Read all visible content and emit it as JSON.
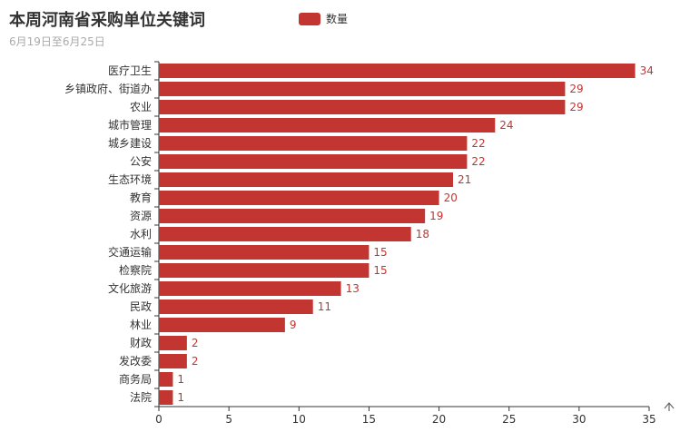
{
  "title": "本周河南省采购单位关键词",
  "subtitle": "6月19日至6月25日",
  "legend": {
    "label": "数量",
    "color": "#c23531"
  },
  "scroll_icon": "chevron-up-icon",
  "chart_data": {
    "type": "bar",
    "orientation": "horizontal",
    "categories": [
      "医疗卫生",
      "乡镇政府、街道办",
      "农业",
      "城市管理",
      "城乡建设",
      "公安",
      "生态环境",
      "教育",
      "资源",
      "水利",
      "交通运输",
      "检察院",
      "文化旅游",
      "民政",
      "林业",
      "财政",
      "发改委",
      "商务局",
      "法院"
    ],
    "series": [
      {
        "name": "数量",
        "values": [
          34,
          29,
          29,
          24,
          22,
          22,
          21,
          20,
          19,
          18,
          15,
          15,
          13,
          11,
          9,
          2,
          2,
          1,
          1
        ]
      }
    ],
    "xlim": [
      0,
      35
    ],
    "xticks": [
      0,
      5,
      10,
      15,
      20,
      25,
      30,
      35
    ],
    "grid": false,
    "legend_position": "top",
    "data_labels": "right"
  }
}
